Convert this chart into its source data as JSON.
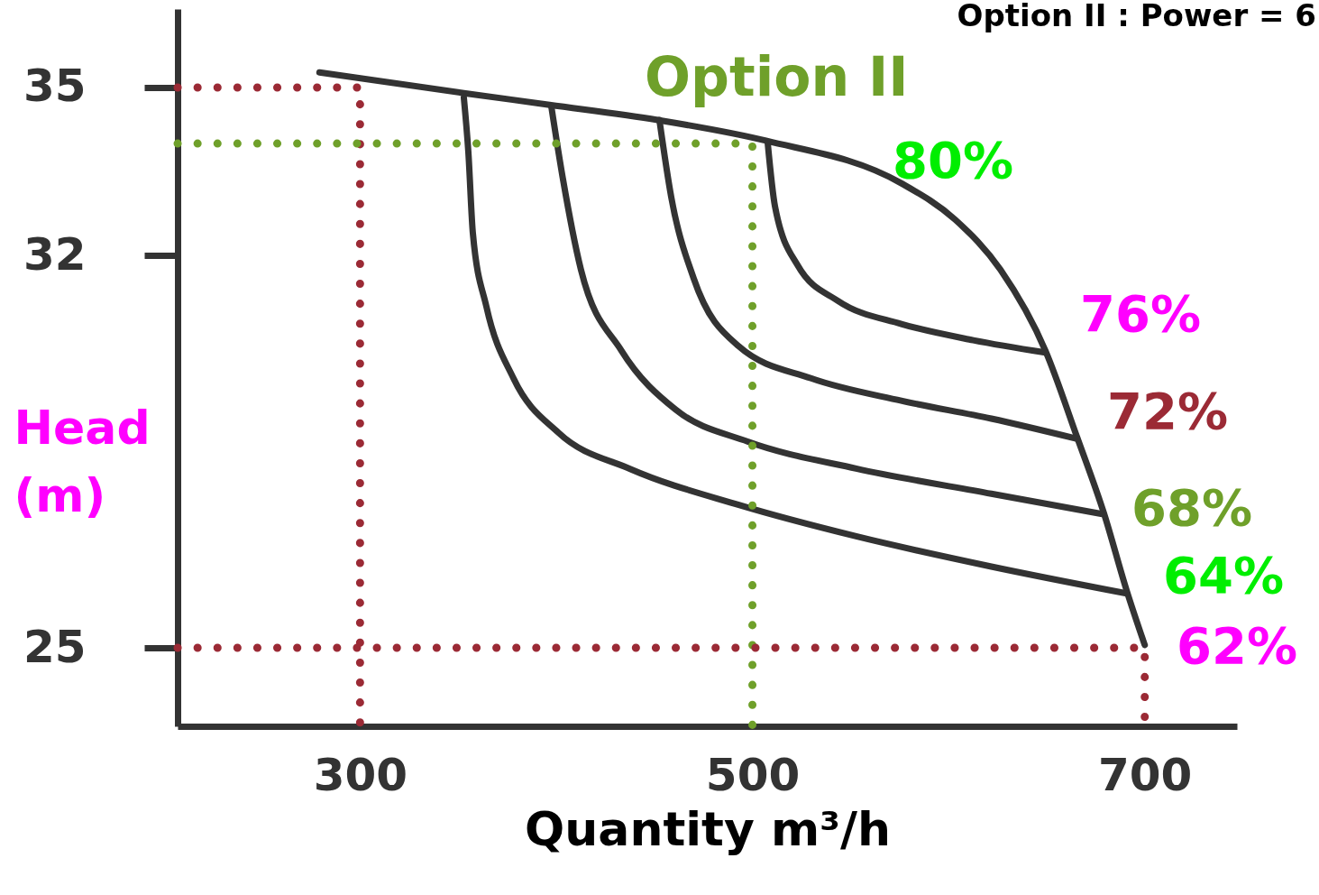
{
  "chart_data": {
    "type": "line",
    "xlabel": "Quantity m³/h",
    "ylabel": "Head (m)",
    "xlim": [
      207,
      747
    ],
    "ylim": [
      23.6,
      36.4
    ],
    "xticks": [
      300,
      500,
      700
    ],
    "yticks": [
      25,
      32,
      35
    ],
    "series": [
      {
        "color": "#333333",
        "line_style": "solid",
        "x": [
          279.3,
          352.9,
          396.6,
          451.7,
          506.9,
          575.9,
          603.4,
          626.4,
          649.4,
          665.5,
          679.3,
          690.8,
          700
        ],
        "values": [
          35.27,
          34.9,
          34.69,
          34.42,
          34.05,
          33.29,
          32.64,
          31.75,
          30.3,
          28.76,
          27.39,
          26.02,
          25.05
        ]
      },
      {
        "color": "#333333",
        "line_style": "solid",
        "x": [
          352.9,
          355.2,
          357.5,
          364.4,
          378.2,
          401.1,
          437.9,
          493.1,
          552.9,
          621.8,
          690.8
        ],
        "values": [
          34.82,
          33.85,
          32.4,
          31.09,
          29.81,
          28.84,
          28.19,
          27.55,
          26.99,
          26.45,
          25.97
        ]
      },
      {
        "color": "#333333",
        "line_style": "solid",
        "x": [
          397.5,
          403.4,
          412.6,
          433.3,
          460.9,
          497.7,
          552.9,
          621.8,
          677.9
        ],
        "values": [
          34.66,
          33.37,
          31.75,
          30.3,
          29.25,
          28.68,
          28.2,
          27.75,
          27.39
        ]
      },
      {
        "color": "#333333",
        "line_style": "solid",
        "x": [
          452.6,
          458.6,
          470.1,
          493.1,
          529.9,
          575.9,
          621.8,
          665.5
        ],
        "values": [
          34.42,
          33.05,
          31.59,
          30.38,
          29.81,
          29.41,
          29.09,
          28.73
        ]
      },
      {
        "color": "#333333",
        "line_style": "solid",
        "x": [
          507.8,
          511.5,
          523.0,
          543.7,
          575.9,
          612.6,
          649.4
        ],
        "values": [
          34.01,
          32.88,
          31.83,
          31.19,
          30.78,
          30.49,
          30.27
        ]
      },
      {
        "color": "#9b2a35",
        "line_style": "dotted",
        "x": [
          207,
          300,
          300
        ],
        "values": [
          35,
          35,
          23.6
        ]
      },
      {
        "color": "#6fa02a",
        "line_style": "dotted",
        "x": [
          207,
          500,
          500
        ],
        "values": [
          34,
          34,
          23.6
        ]
      },
      {
        "color": "#9b2a35",
        "line_style": "dotted",
        "x": [
          207,
          700,
          700
        ],
        "values": [
          25,
          25,
          23.6
        ]
      }
    ],
    "annotations": [
      "Option II",
      "80%",
      "76%",
      "72%",
      "68%",
      "64%",
      "62%",
      "Option II  :      Power = 6"
    ]
  }
}
